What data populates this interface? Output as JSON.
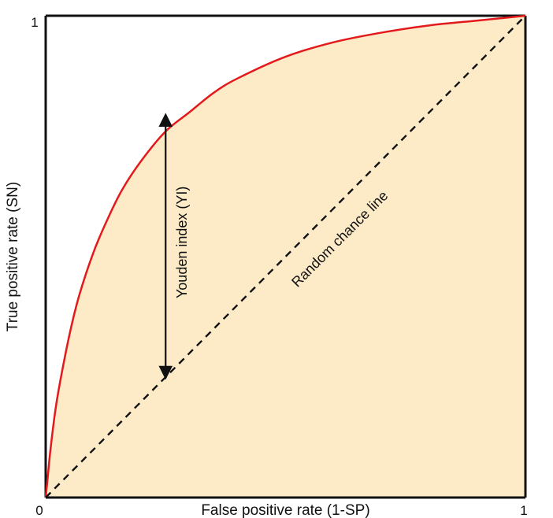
{
  "chart_data": {
    "type": "line",
    "title": "",
    "xlabel": "False positive rate (1-SP)",
    "ylabel": "True positive rate (SN)",
    "xlim": [
      0,
      1
    ],
    "ylim": [
      0,
      1
    ],
    "x_ticks": [
      {
        "value": 0,
        "label": "0"
      },
      {
        "value": 1,
        "label": "1"
      }
    ],
    "y_ticks": [
      {
        "value": 0,
        "label": "0"
      },
      {
        "value": 1,
        "label": "1"
      }
    ],
    "grid": false,
    "series": [
      {
        "color": "#e31a1c",
        "fill_below": "#fdebc8",
        "x": [
          0,
          0.005,
          0.01,
          0.02,
          0.03,
          0.05,
          0.07,
          0.1,
          0.13,
          0.16,
          0.2,
          0.25,
          0.3,
          0.35,
          0.4,
          0.5,
          0.6,
          0.7,
          0.8,
          0.9,
          1.0
        ],
        "y": [
          0,
          0.05,
          0.1,
          0.18,
          0.24,
          0.34,
          0.42,
          0.51,
          0.58,
          0.64,
          0.7,
          0.76,
          0.8,
          0.84,
          0.87,
          0.915,
          0.945,
          0.965,
          0.98,
          0.99,
          1.0
        ]
      },
      {
        "style": "dashed",
        "color": "#111111",
        "x": [
          0,
          1
        ],
        "y": [
          0,
          1
        ]
      }
    ],
    "annotations": [
      {
        "text": "Random chance line",
        "kind": "line-label",
        "x": 0.62,
        "y": 0.53,
        "rotation": -45
      },
      {
        "text": "Youden index (YI)",
        "kind": "double-arrow",
        "x": 0.25,
        "y_from": 0.248,
        "y_to": 0.795
      }
    ]
  }
}
